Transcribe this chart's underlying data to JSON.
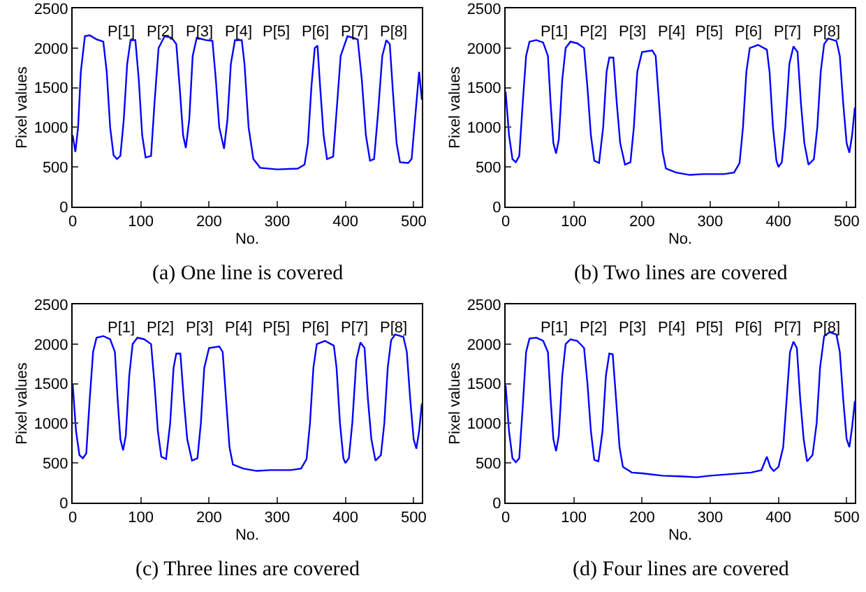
{
  "chart_data": [
    {
      "type": "line",
      "title": "(a) One line is covered",
      "xlabel": "No.",
      "ylabel": "Pixel values",
      "xlim": [
        0,
        512
      ],
      "xticks": [
        0,
        100,
        200,
        300,
        400,
        500
      ],
      "ylim": [
        0,
        2500
      ],
      "yticks": [
        0,
        500,
        1000,
        1500,
        2000,
        2500
      ],
      "grid": false,
      "marker": "none",
      "line_style": "solid",
      "annotations": [
        "P[1]",
        "P[2]",
        "P[3]",
        "P[4]",
        "P[5]",
        "P[6]",
        "P[7]",
        "P[8]"
      ],
      "series": [
        {
          "color": "#0000ff",
          "x": [
            0,
            4,
            8,
            12,
            18,
            25,
            35,
            45,
            50,
            55,
            60,
            65,
            70,
            75,
            80,
            85,
            92,
            97,
            102,
            107,
            115,
            120,
            126,
            135,
            145,
            152,
            157,
            162,
            166,
            171,
            176,
            182,
            195,
            205,
            210,
            215,
            222,
            227,
            232,
            238,
            248,
            252,
            258,
            265,
            275,
            300,
            330,
            340,
            345,
            350,
            355,
            359,
            363,
            368,
            373,
            382,
            387,
            393,
            403,
            418,
            424,
            430,
            436,
            442,
            448,
            454,
            460,
            465,
            470,
            475,
            480,
            492,
            497,
            503,
            508,
            512
          ],
          "values": [
            900,
            690,
            1000,
            1700,
            2150,
            2160,
            2110,
            2080,
            1700,
            1000,
            650,
            600,
            640,
            1100,
            1800,
            2100,
            2100,
            1600,
            900,
            620,
            640,
            1300,
            2000,
            2150,
            2130,
            2050,
            1500,
            900,
            740,
            1100,
            1900,
            2130,
            2100,
            2090,
            1600,
            1000,
            730,
            1100,
            1800,
            2100,
            2100,
            1800,
            1000,
            600,
            490,
            470,
            480,
            530,
            800,
            1500,
            2000,
            2030,
            1500,
            900,
            600,
            630,
            1200,
            1900,
            2150,
            2110,
            1600,
            900,
            580,
            600,
            1200,
            1900,
            2100,
            2050,
            1400,
            800,
            560,
            550,
            600,
            1200,
            1700,
            1350
          ]
        }
      ]
    },
    {
      "type": "line",
      "title": "(b) Two lines are covered",
      "xlabel": "No.",
      "ylabel": "Pixel values",
      "xlim": [
        0,
        512
      ],
      "xticks": [
        0,
        100,
        200,
        300,
        400,
        500
      ],
      "ylim": [
        0,
        2500
      ],
      "yticks": [
        0,
        500,
        1000,
        1500,
        2000,
        2500
      ],
      "grid": false,
      "marker": "none",
      "line_style": "solid",
      "annotations": [
        "P[1]",
        "P[2]",
        "P[3]",
        "P[4]",
        "P[5]",
        "P[6]",
        "P[7]",
        "P[8]"
      ],
      "series": [
        {
          "color": "#0000ff",
          "x": [
            0,
            5,
            10,
            15,
            20,
            25,
            30,
            35,
            45,
            55,
            62,
            66,
            70,
            74,
            78,
            83,
            88,
            95,
            105,
            115,
            120,
            125,
            130,
            137,
            143,
            148,
            152,
            158,
            163,
            168,
            175,
            183,
            188,
            193,
            200,
            215,
            220,
            225,
            230,
            235,
            250,
            270,
            290,
            320,
            335,
            343,
            348,
            353,
            358,
            370,
            383,
            387,
            392,
            397,
            400,
            405,
            410,
            416,
            422,
            428,
            433,
            438,
            444,
            452,
            457,
            462,
            467,
            473,
            485,
            490,
            495,
            500,
            504,
            508,
            512
          ],
          "values": [
            1450,
            900,
            600,
            560,
            640,
            1300,
            1900,
            2080,
            2100,
            2070,
            1900,
            1300,
            800,
            670,
            850,
            1600,
            2000,
            2080,
            2060,
            2000,
            1500,
            900,
            580,
            550,
            1000,
            1700,
            1880,
            1880,
            1300,
            800,
            530,
            560,
            1000,
            1700,
            1950,
            1970,
            1900,
            1300,
            700,
            480,
            430,
            400,
            410,
            410,
            430,
            550,
            1000,
            1700,
            2000,
            2040,
            1980,
            1700,
            1000,
            580,
            500,
            560,
            1000,
            1800,
            2020,
            1950,
            1300,
            800,
            530,
            600,
            1000,
            1700,
            2050,
            2120,
            2090,
            1900,
            1300,
            800,
            680,
            900,
            1250
          ]
        }
      ]
    },
    {
      "type": "line",
      "title": "(c) Three lines are covered",
      "xlabel": "No.",
      "ylabel": "Pixel values",
      "xlim": [
        0,
        512
      ],
      "xticks": [
        0,
        100,
        200,
        300,
        400,
        500
      ],
      "ylim": [
        0,
        2500
      ],
      "yticks": [
        0,
        500,
        1000,
        1500,
        2000,
        2500
      ],
      "grid": false,
      "marker": "none",
      "line_style": "solid",
      "annotations": [
        "P[1]",
        "P[2]",
        "P[3]",
        "P[4]",
        "P[5]",
        "P[6]",
        "P[7]",
        "P[8]"
      ],
      "series": [
        {
          "color": "#0000ff",
          "x": [
            0,
            5,
            10,
            15,
            20,
            25,
            30,
            35,
            45,
            55,
            62,
            66,
            70,
            74,
            78,
            83,
            88,
            95,
            105,
            115,
            120,
            125,
            130,
            137,
            143,
            148,
            152,
            158,
            163,
            168,
            175,
            183,
            188,
            193,
            200,
            215,
            220,
            225,
            230,
            235,
            250,
            270,
            290,
            320,
            335,
            343,
            348,
            353,
            358,
            370,
            383,
            387,
            392,
            397,
            400,
            405,
            410,
            416,
            422,
            428,
            433,
            438,
            444,
            452,
            457,
            462,
            467,
            473,
            485,
            490,
            495,
            500,
            504,
            508,
            512
          ],
          "values": [
            1500,
            900,
            600,
            560,
            620,
            1300,
            1900,
            2080,
            2100,
            2060,
            1900,
            1300,
            800,
            660,
            850,
            1600,
            2000,
            2080,
            2060,
            2000,
            1500,
            900,
            580,
            550,
            1000,
            1700,
            1880,
            1880,
            1300,
            800,
            530,
            560,
            1000,
            1700,
            1950,
            1970,
            1900,
            1300,
            700,
            480,
            430,
            400,
            410,
            410,
            430,
            550,
            1000,
            1700,
            2000,
            2040,
            1980,
            1700,
            1000,
            560,
            500,
            560,
            1000,
            1800,
            2020,
            1950,
            1300,
            800,
            530,
            600,
            1000,
            1700,
            2050,
            2120,
            2090,
            1900,
            1300,
            800,
            680,
            900,
            1250
          ]
        }
      ]
    },
    {
      "type": "line",
      "title": "(d) Four lines are covered",
      "xlabel": "No.",
      "ylabel": "Pixel values",
      "xlim": [
        0,
        512
      ],
      "xticks": [
        0,
        100,
        200,
        300,
        400,
        500
      ],
      "ylim": [
        0,
        2500
      ],
      "yticks": [
        0,
        500,
        1000,
        1500,
        2000,
        2500
      ],
      "grid": false,
      "marker": "none",
      "line_style": "solid",
      "annotations": [
        "P[1]",
        "P[2]",
        "P[3]",
        "P[4]",
        "P[5]",
        "P[6]",
        "P[7]",
        "P[8]"
      ],
      "series": [
        {
          "color": "#0000ff",
          "x": [
            0,
            5,
            10,
            15,
            20,
            25,
            30,
            35,
            45,
            55,
            62,
            66,
            70,
            74,
            78,
            83,
            88,
            95,
            105,
            115,
            120,
            125,
            130,
            136,
            142,
            147,
            152,
            157,
            162,
            167,
            172,
            185,
            200,
            230,
            260,
            280,
            300,
            330,
            360,
            375,
            383,
            388,
            393,
            400,
            407,
            412,
            417,
            422,
            427,
            432,
            437,
            442,
            450,
            456,
            461,
            467,
            475,
            485,
            490,
            495,
            500,
            504,
            508,
            512
          ],
          "values": [
            1480,
            900,
            560,
            510,
            560,
            1200,
            1900,
            2070,
            2080,
            2040,
            1900,
            1300,
            800,
            650,
            850,
            1600,
            2000,
            2060,
            2040,
            1950,
            1500,
            900,
            540,
            520,
            900,
            1600,
            1880,
            1870,
            1300,
            700,
            450,
            380,
            370,
            340,
            330,
            320,
            340,
            360,
            380,
            410,
            580,
            450,
            400,
            450,
            700,
            1300,
            1900,
            2030,
            1950,
            1300,
            800,
            520,
            600,
            1000,
            1700,
            2100,
            2150,
            2120,
            1900,
            1300,
            800,
            700,
            950,
            1280
          ]
        }
      ]
    }
  ]
}
